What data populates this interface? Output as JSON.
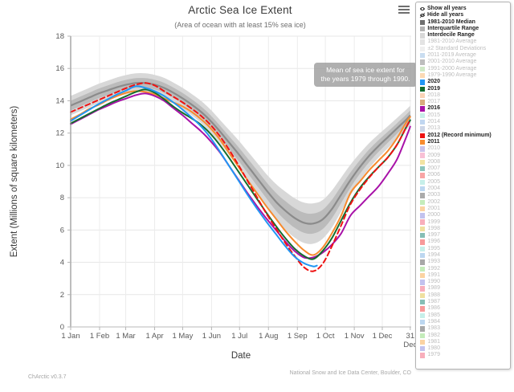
{
  "chart_data": {
    "type": "line",
    "title": "Arctic Sea Ice Extent",
    "subtitle": "(Area of ocean with at least 15% sea ice)",
    "xlabel": "Date",
    "ylabel": "Extent (Millions of square kilometers)",
    "ylim": [
      0,
      18
    ],
    "y_ticks": [
      0,
      2,
      4,
      6,
      8,
      10,
      12,
      14,
      16,
      18
    ],
    "x_tick_days": [
      0,
      31,
      59,
      90,
      120,
      151,
      181,
      212,
      243,
      273,
      304,
      334,
      364
    ],
    "x_tick_labels": [
      "1 Jan",
      "1 Feb",
      "1 Mar",
      "1 Apr",
      "1 May",
      "1 Jun",
      "1 Jul",
      "1 Aug",
      "1 Sep",
      "1 Oct",
      "1 Nov",
      "1 Dec",
      "31|Dec"
    ],
    "grid": true,
    "days": [
      0,
      10,
      20,
      30,
      40,
      50,
      60,
      70,
      80,
      90,
      100,
      110,
      120,
      130,
      140,
      150,
      160,
      170,
      180,
      190,
      200,
      210,
      220,
      230,
      240,
      250,
      260,
      270,
      280,
      290,
      300,
      310,
      320,
      330,
      340,
      350,
      360,
      364
    ],
    "median_1981_2010": [
      13.7,
      13.95,
      14.2,
      14.45,
      14.65,
      14.85,
      15.0,
      15.1,
      15.1,
      15.0,
      14.8,
      14.5,
      14.15,
      13.75,
      13.3,
      12.75,
      12.1,
      11.4,
      10.7,
      9.95,
      9.2,
      8.45,
      7.75,
      7.2,
      6.75,
      6.45,
      6.4,
      6.65,
      7.3,
      8.2,
      9.1,
      9.9,
      10.6,
      11.2,
      11.75,
      12.3,
      12.85,
      13.1
    ],
    "interdecile_halfwidth": [
      0.6,
      0.6,
      0.6,
      0.6,
      0.6,
      0.6,
      0.6,
      0.6,
      0.6,
      0.6,
      0.62,
      0.63,
      0.65,
      0.66,
      0.68,
      0.7,
      0.72,
      0.78,
      0.85,
      0.9,
      0.95,
      1.0,
      1.1,
      1.18,
      1.22,
      1.25,
      1.25,
      1.2,
      1.15,
      1.05,
      0.95,
      0.85,
      0.78,
      0.72,
      0.68,
      0.65,
      0.62,
      0.6
    ],
    "interquartile_halfwidth": [
      0.3,
      0.3,
      0.3,
      0.3,
      0.3,
      0.3,
      0.3,
      0.3,
      0.3,
      0.3,
      0.31,
      0.32,
      0.33,
      0.33,
      0.34,
      0.35,
      0.36,
      0.39,
      0.42,
      0.45,
      0.48,
      0.5,
      0.55,
      0.59,
      0.61,
      0.62,
      0.62,
      0.6,
      0.57,
      0.52,
      0.47,
      0.42,
      0.39,
      0.36,
      0.34,
      0.32,
      0.31,
      0.3
    ],
    "band_colors": {
      "interdecile": "#d8d8d8",
      "interquartile": "#bbbbbb",
      "median": "#8b8b8b"
    },
    "series": [
      {
        "name": "2011",
        "color": "#f78b2e",
        "dash": null,
        "values": [
          12.85,
          13.15,
          13.5,
          13.75,
          14.05,
          14.3,
          14.5,
          14.6,
          14.55,
          14.4,
          14.15,
          13.9,
          13.65,
          13.3,
          12.85,
          12.3,
          11.6,
          10.75,
          9.9,
          9.05,
          8.25,
          7.45,
          6.7,
          5.95,
          5.3,
          4.75,
          4.45,
          4.9,
          5.8,
          6.9,
          8.3,
          9.0,
          9.7,
          10.3,
          10.9,
          11.7,
          12.7,
          13.0
        ]
      },
      {
        "name": "2016",
        "color": "#a812a8",
        "dash": null,
        "values": [
          12.55,
          12.85,
          13.15,
          13.45,
          13.7,
          13.95,
          14.15,
          14.35,
          14.45,
          14.3,
          14.0,
          13.55,
          13.1,
          12.6,
          12.1,
          11.5,
          10.8,
          9.95,
          9.1,
          8.25,
          7.45,
          6.7,
          6.0,
          5.3,
          4.7,
          4.3,
          4.3,
          4.6,
          5.1,
          5.8,
          6.9,
          7.5,
          8.1,
          8.7,
          9.5,
          10.4,
          11.8,
          12.4
        ]
      },
      {
        "name": "2019",
        "color": "#146c2e",
        "dash": null,
        "values": [
          12.6,
          12.9,
          13.2,
          13.5,
          13.8,
          14.05,
          14.3,
          14.55,
          14.7,
          14.5,
          14.1,
          13.65,
          13.25,
          12.9,
          12.5,
          11.95,
          11.25,
          10.45,
          9.6,
          8.75,
          7.9,
          7.05,
          6.25,
          5.5,
          4.85,
          4.4,
          4.2,
          4.7,
          5.5,
          6.6,
          7.7,
          8.6,
          9.3,
          9.9,
          10.5,
          11.3,
          12.4,
          12.8
        ]
      },
      {
        "name": "2012 (Record minimum)",
        "color": "#ee1212",
        "dash": "6,4",
        "values": [
          13.3,
          13.55,
          13.8,
          14.05,
          14.3,
          14.55,
          14.8,
          15.0,
          15.1,
          14.95,
          14.6,
          14.25,
          13.9,
          13.5,
          13.05,
          12.5,
          11.8,
          10.95,
          10.0,
          9.0,
          8.0,
          7.0,
          6.1,
          5.2,
          4.4,
          3.7,
          3.45,
          3.9,
          5.0,
          6.3,
          7.6,
          8.5,
          9.25,
          9.9,
          10.5,
          11.3,
          12.4,
          12.85
        ]
      },
      {
        "name": "2020",
        "color": "#2196f3",
        "dash": null,
        "days": [
          0,
          10,
          20,
          30,
          40,
          50,
          60,
          70,
          80,
          90,
          100,
          110,
          120,
          130,
          140,
          150,
          160,
          170,
          180,
          190,
          200,
          210,
          220,
          230,
          240,
          250,
          260,
          264
        ],
        "values": [
          12.75,
          13.1,
          13.45,
          13.8,
          14.1,
          14.4,
          14.65,
          14.9,
          14.8,
          14.6,
          14.3,
          13.9,
          13.45,
          12.95,
          12.4,
          11.7,
          10.85,
          9.95,
          9.05,
          8.15,
          7.3,
          6.5,
          5.75,
          5.0,
          4.35,
          3.95,
          3.75,
          3.8
        ]
      }
    ]
  },
  "tooltip": {
    "lines": [
      "Mean of sea ice extent for",
      "the years 1979 through 1990."
    ]
  },
  "legend": {
    "items": [
      {
        "label": "Show all years",
        "icon": "eye",
        "bold": true
      },
      {
        "label": "Hide all years",
        "icon": "eye-off",
        "bold": true
      },
      {
        "label": "1981-2010 Median",
        "color": "#6f6f6f",
        "bold": true
      },
      {
        "label": "Interquartile Range",
        "color": "#b3b3b3",
        "bold": true
      },
      {
        "label": "Interdecile Range",
        "color": "#d8d8d8",
        "bold": true
      },
      {
        "label": "1981-2010 Average",
        "color": "#e3e3e3",
        "bold": false
      },
      {
        "label": "±2 Standard Deviations",
        "color": "#efefef",
        "bold": false
      },
      {
        "label": "2011-2019 Average",
        "color": "#c9ddf0",
        "bold": false
      },
      {
        "label": "2001-2010 Average",
        "color": "#bdbdbd",
        "bold": false
      },
      {
        "label": "1991-2000 Average",
        "color": "#cfe8c6",
        "bold": false
      },
      {
        "label": "1979-1990 Average",
        "color": "#fbd9b4",
        "bold": false
      },
      {
        "label": "2020",
        "color": "#2196f3",
        "bold": true
      },
      {
        "label": "2019",
        "color": "#146c2e",
        "bold": true
      },
      {
        "label": "2018",
        "color": "#f9d3b6",
        "bold": false
      },
      {
        "label": "2017",
        "color": "#d8ab7e",
        "bold": false
      },
      {
        "label": "2016",
        "color": "#a812a8",
        "bold": true
      },
      {
        "label": "2015",
        "color": "#c8efe9",
        "bold": false
      },
      {
        "label": "2014",
        "color": "#c0d6f0",
        "bold": false
      },
      {
        "label": "2013",
        "color": "#ccd5e6",
        "bold": false
      },
      {
        "label": "2012 (Record minimum)",
        "color": "#ee1212",
        "bold": true
      },
      {
        "label": "2011",
        "color": "#f78b2e",
        "bold": true
      },
      {
        "label": "2010",
        "color": "#c9c2ea",
        "bold": false
      },
      {
        "label": "2009",
        "color": "#f8c0d5",
        "bold": false
      },
      {
        "label": "2008",
        "color": "#f2e3a2",
        "bold": false
      },
      {
        "label": "2007",
        "color": "#8cc5bc",
        "bold": false
      },
      {
        "label": "2006",
        "color": "#f8a5a5",
        "bold": false
      },
      {
        "label": "2005",
        "color": "#c6efe9",
        "bold": false
      },
      {
        "label": "2004",
        "color": "#bcd7f0",
        "bold": false
      },
      {
        "label": "2003",
        "color": "#ababab",
        "bold": false
      },
      {
        "label": "2002",
        "color": "#c4ecba",
        "bold": false
      },
      {
        "label": "2001",
        "color": "#fbd3a2",
        "bold": false
      },
      {
        "label": "2000",
        "color": "#c2c2ee",
        "bold": false
      },
      {
        "label": "1999",
        "color": "#f8aebb",
        "bold": false
      },
      {
        "label": "1998",
        "color": "#efe0a0",
        "bold": false
      },
      {
        "label": "1997",
        "color": "#86beb5",
        "bold": false
      },
      {
        "label": "1996",
        "color": "#f79a9a",
        "bold": false
      },
      {
        "label": "1995",
        "color": "#c6efe9",
        "bold": false
      },
      {
        "label": "1994",
        "color": "#bcd7f0",
        "bold": false
      },
      {
        "label": "1993",
        "color": "#a8a8a8",
        "bold": false
      },
      {
        "label": "1992",
        "color": "#c4ecba",
        "bold": false
      },
      {
        "label": "1991",
        "color": "#fbd3a2",
        "bold": false
      },
      {
        "label": "1990",
        "color": "#c2c2ee",
        "bold": false
      },
      {
        "label": "1989",
        "color": "#f8aebb",
        "bold": false
      },
      {
        "label": "1988",
        "color": "#efe0a0",
        "bold": false
      },
      {
        "label": "1987",
        "color": "#86beb5",
        "bold": false
      },
      {
        "label": "1986",
        "color": "#f79a9a",
        "bold": false
      },
      {
        "label": "1985",
        "color": "#c6efe9",
        "bold": false
      },
      {
        "label": "1984",
        "color": "#bcd7f0",
        "bold": false
      },
      {
        "label": "1983",
        "color": "#a8a8a8",
        "bold": false
      },
      {
        "label": "1982",
        "color": "#c4ecba",
        "bold": false
      },
      {
        "label": "1981",
        "color": "#fbd3a2",
        "bold": false
      },
      {
        "label": "1980",
        "color": "#c2c2ee",
        "bold": false
      },
      {
        "label": "1979",
        "color": "#f8aebb",
        "bold": false
      }
    ]
  },
  "footer": {
    "version": "ChArctic v0.3.7",
    "credit": "National Snow and Ice Data Center, Boulder, CO"
  }
}
